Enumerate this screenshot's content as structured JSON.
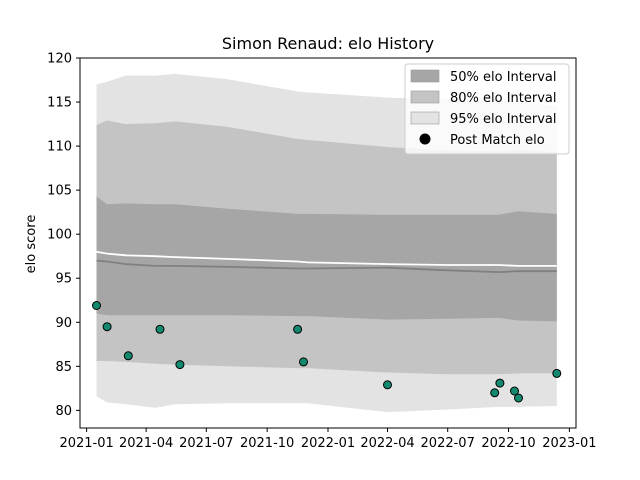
{
  "chart_data": {
    "type": "line",
    "title": "Simon Renaud: elo History",
    "xlabel": "",
    "ylabel": "elo score",
    "xlim": [
      "2020-12-22",
      "2023-01-11"
    ],
    "ylim": [
      78,
      120
    ],
    "x_ticks": [
      "2021-01",
      "2021-04",
      "2021-07",
      "2021-10",
      "2022-01",
      "2022-04",
      "2022-07",
      "2022-10",
      "2023-01"
    ],
    "y_ticks": [
      80,
      85,
      90,
      95,
      100,
      105,
      110,
      115,
      120
    ],
    "colors": {
      "band_50": "#a6a6a6",
      "band_80": "#c4c4c4",
      "band_95": "#e3e3e3",
      "mean_line": "#ffffff",
      "median_line": "#808080",
      "point_fill": "#138a6f",
      "point_edge": "#000000"
    },
    "band_dates": [
      "2021-01-16",
      "2021-02-01",
      "2021-03-01",
      "2021-04-15",
      "2021-05-15",
      "2021-08-01",
      "2021-11-16",
      "2021-12-01",
      "2022-04-01",
      "2022-07-01",
      "2022-09-16",
      "2022-10-15",
      "2022-12-13"
    ],
    "series": [
      {
        "name": "95% elo Interval",
        "kind": "band",
        "upper": [
          117.0,
          117.3,
          118.0,
          118.0,
          118.2,
          117.6,
          116.2,
          116.1,
          115.5,
          115.3,
          115.2,
          115.0,
          114.6
        ],
        "lower": [
          81.6,
          80.9,
          80.7,
          80.3,
          80.7,
          80.8,
          80.8,
          80.8,
          79.8,
          80.1,
          80.4,
          80.4,
          80.5
        ]
      },
      {
        "name": "80% elo Interval",
        "kind": "band",
        "upper": [
          112.4,
          112.9,
          112.5,
          112.6,
          112.8,
          112.2,
          110.8,
          110.7,
          109.9,
          109.5,
          109.4,
          109.6,
          109.3
        ],
        "lower": [
          85.6,
          85.6,
          85.5,
          85.3,
          85.2,
          85.0,
          84.8,
          84.8,
          84.3,
          84.1,
          84.1,
          84.2,
          84.2
        ]
      },
      {
        "name": "50% elo Interval",
        "kind": "band",
        "upper": [
          104.3,
          103.4,
          103.5,
          103.4,
          103.4,
          102.9,
          102.3,
          102.3,
          102.2,
          102.2,
          102.2,
          102.6,
          102.3
        ],
        "lower": [
          91.0,
          90.8,
          90.8,
          90.8,
          90.8,
          90.8,
          90.7,
          90.7,
          90.3,
          90.4,
          90.5,
          90.2,
          90.1
        ]
      },
      {
        "name": "mean",
        "kind": "line",
        "values": [
          98.0,
          97.8,
          97.6,
          97.5,
          97.4,
          97.2,
          96.9,
          96.8,
          96.6,
          96.5,
          96.5,
          96.4,
          96.4
        ]
      },
      {
        "name": "median",
        "kind": "line",
        "values": [
          97.0,
          96.9,
          96.6,
          96.4,
          96.4,
          96.3,
          96.1,
          96.1,
          96.2,
          95.9,
          95.7,
          95.8,
          95.8
        ]
      },
      {
        "name": "Post Match elo",
        "kind": "scatter",
        "dates": [
          "2021-01-16",
          "2021-02-01",
          "2021-03-05",
          "2021-04-22",
          "2021-05-22",
          "2021-11-16",
          "2021-11-25",
          "2022-04-01",
          "2022-09-10",
          "2022-09-18",
          "2022-10-10",
          "2022-10-16",
          "2022-12-13"
        ],
        "values": [
          91.9,
          89.5,
          86.2,
          89.2,
          85.2,
          89.2,
          85.5,
          82.9,
          82.0,
          83.1,
          82.2,
          81.4,
          84.2
        ]
      }
    ],
    "legend": {
      "position": "top-right",
      "items": [
        {
          "label": "50% elo Interval",
          "marker": "patch",
          "color": "#a6a6a6"
        },
        {
          "label": "80% elo Interval",
          "marker": "patch",
          "color": "#c4c4c4"
        },
        {
          "label": "95% elo Interval",
          "marker": "patch",
          "color": "#e3e3e3"
        },
        {
          "label": "Post Match elo",
          "marker": "dot",
          "color": "#000000"
        }
      ]
    }
  }
}
